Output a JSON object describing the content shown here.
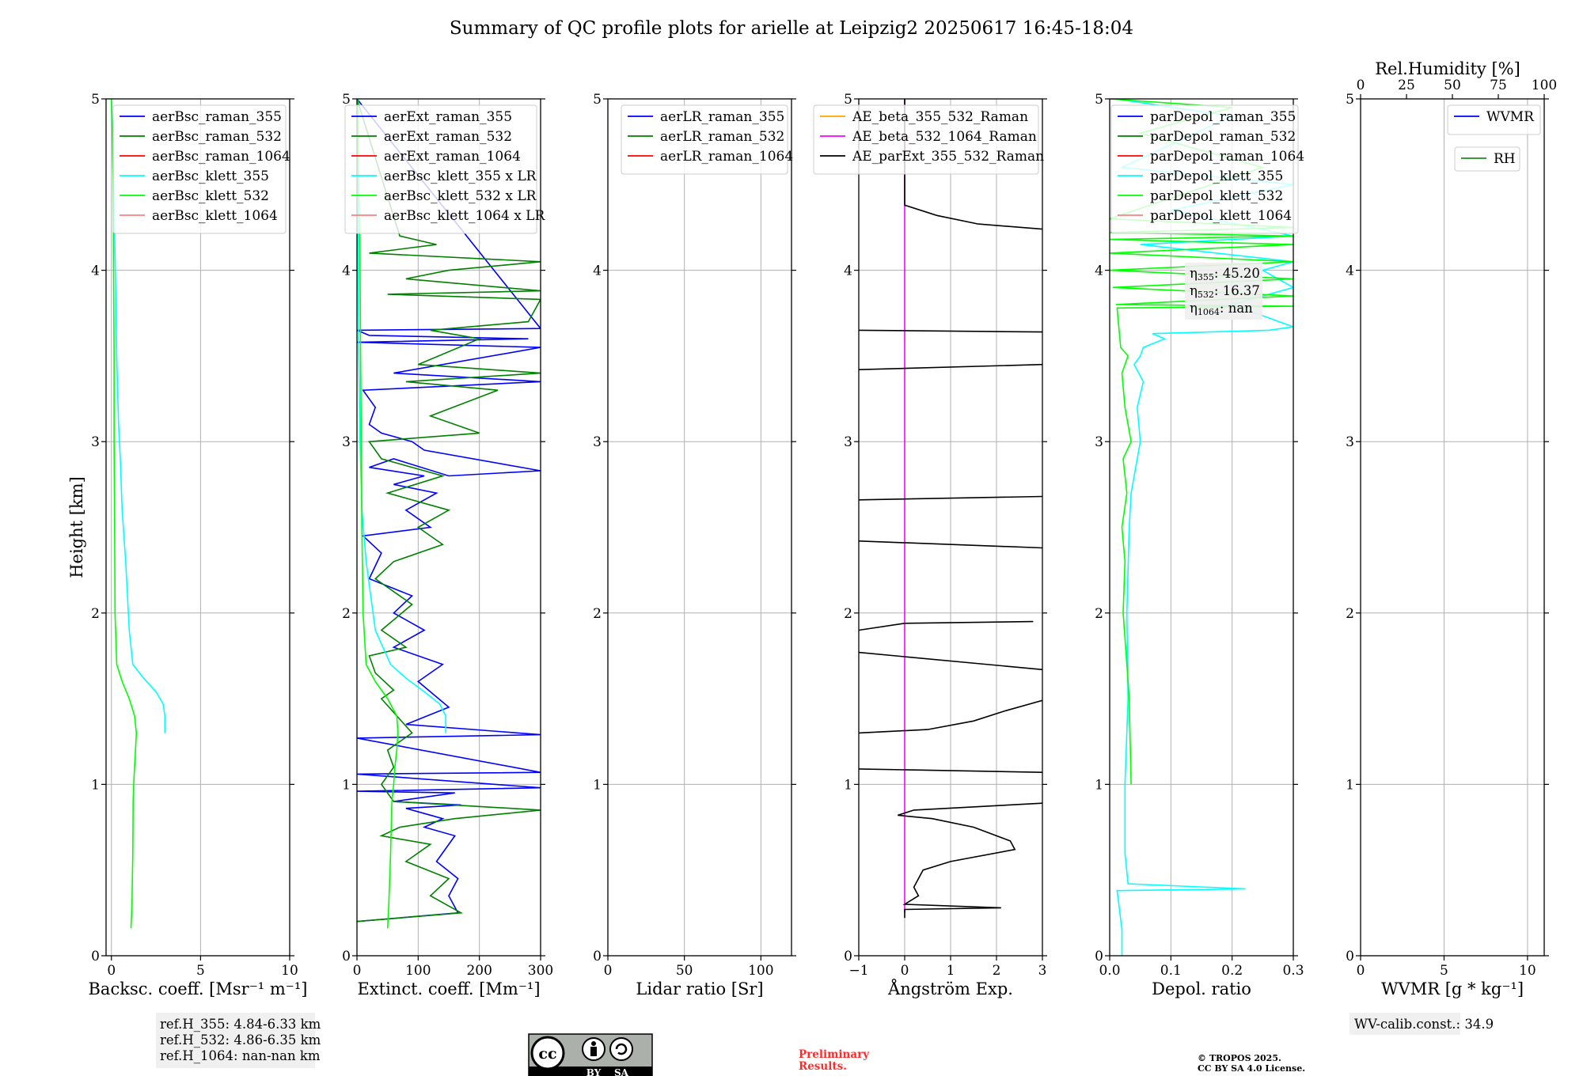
{
  "title": "Summary of QC profile plots for arielle at Leipzig2 20250617 16:45-18:04",
  "colors": {
    "raman_355": "#0000ff",
    "raman_532": "#008000",
    "raman_1064": "#ff0000",
    "klett_355": "#00ffff",
    "klett_532": "#00ff00",
    "klett_1064": "#ff8080",
    "ae_355_532": "#ffa500",
    "ae_532_1064": "#ff00ff",
    "ae_parext": "#000000",
    "rh": "#228b22"
  },
  "y_axis": {
    "label": "Height [km]",
    "lim": [
      0,
      5
    ],
    "ticks": [
      "0",
      "1",
      "2",
      "3",
      "4",
      "5"
    ]
  },
  "chart_data": [
    {
      "type": "line",
      "id": "bsc",
      "xlabel": "Backsc. coeff. [Msr⁻¹ m⁻¹]",
      "xlim": [
        -0.3,
        10
      ],
      "xticks": [
        0,
        5,
        10
      ],
      "xticklabels": [
        "0",
        "5",
        "10"
      ],
      "legend": [
        "aerBsc_raman_355",
        "aerBsc_raman_532",
        "aerBsc_raman_1064",
        "aerBsc_klett_355",
        "aerBsc_klett_532",
        "aerBsc_klett_1064"
      ],
      "legend_colors": [
        "raman_355",
        "raman_532",
        "raman_1064",
        "klett_355",
        "klett_532",
        "klett_1064"
      ],
      "legend_loc": "upper-right",
      "series": [
        {
          "color": "klett_355",
          "x": [
            3.0,
            3.0,
            2.9,
            2.5,
            1.8,
            1.2,
            1.0,
            0.8,
            0.6,
            0.5,
            0.45,
            0.4,
            0.35,
            0.3,
            0.25,
            0.22,
            0.18,
            0.15,
            0.1,
            0.05,
            0.0
          ],
          "y": [
            1.3,
            1.4,
            1.47,
            1.54,
            1.62,
            1.7,
            1.9,
            2.3,
            2.6,
            2.9,
            3.0,
            3.1,
            3.3,
            3.5,
            3.8,
            4.0,
            4.2,
            4.4,
            4.6,
            4.8,
            5.0
          ]
        },
        {
          "color": "klett_532",
          "x": [
            1.1,
            1.15,
            1.2,
            1.22,
            1.25,
            1.3,
            1.35,
            1.4,
            1.3,
            1.0,
            0.6,
            0.3,
            0.2,
            0.18,
            0.15,
            0.15,
            0.12,
            0.1,
            0.05,
            0.0
          ],
          "y": [
            0.16,
            0.3,
            0.6,
            0.9,
            1.0,
            1.1,
            1.2,
            1.3,
            1.4,
            1.5,
            1.6,
            1.7,
            2.0,
            2.5,
            3.0,
            3.5,
            4.0,
            4.5,
            4.8,
            5.0
          ]
        }
      ]
    },
    {
      "type": "line",
      "id": "ext",
      "xlabel": "Extinct. coeff. [Mm⁻¹]",
      "xlim": [
        0,
        300
      ],
      "xticks": [
        0,
        100,
        200,
        300
      ],
      "xticklabels": [
        "0",
        "100",
        "200",
        "300"
      ],
      "legend": [
        "aerExt_raman_355",
        "aerExt_raman_532",
        "aerExt_raman_1064",
        "aerBsc_klett_355 x LR",
        "aerBsc_klett_532 x LR",
        "aerBsc_klett_1064 x LR"
      ],
      "legend_colors": [
        "raman_355",
        "raman_532",
        "raman_1064",
        "klett_355",
        "klett_532",
        "klett_1064"
      ],
      "legend_loc": "upper-right",
      "series": [
        {
          "color": "raman_355",
          "x": [
            0,
            165,
            150,
            165,
            130,
            160,
            110,
            140,
            80,
            170,
            60,
            160,
            0,
            300,
            0,
            300,
            0,
            300,
            80,
            150,
            100,
            140,
            60,
            110,
            60,
            90,
            20,
            40,
            10,
            120,
            80,
            130,
            60,
            110,
            20,
            60,
            150,
            300,
            110,
            90,
            40,
            20,
            30,
            10,
            300,
            60,
            300,
            0,
            280,
            20,
            0,
            300,
            0
          ],
          "y": [
            0.2,
            0.25,
            0.35,
            0.45,
            0.55,
            0.7,
            0.75,
            0.8,
            0.86,
            0.88,
            0.9,
            0.95,
            0.96,
            0.98,
            1.06,
            1.07,
            1.27,
            1.29,
            1.35,
            1.45,
            1.6,
            1.7,
            1.8,
            1.9,
            2.0,
            2.1,
            2.2,
            2.35,
            2.45,
            2.5,
            2.6,
            2.7,
            2.75,
            2.8,
            2.85,
            2.9,
            2.8,
            2.83,
            2.95,
            3.0,
            3.05,
            3.1,
            3.2,
            3.3,
            3.35,
            3.4,
            3.55,
            3.58,
            3.6,
            3.62,
            3.65,
            3.66,
            5.0
          ]
        },
        {
          "color": "raman_532",
          "x": [
            0,
            170,
            120,
            150,
            80,
            120,
            40,
            70,
            160,
            300,
            60,
            40,
            60,
            50,
            90,
            40,
            60,
            30,
            20,
            80,
            40,
            90,
            30,
            60,
            140,
            100,
            150,
            50,
            140,
            40,
            20,
            200,
            120,
            230,
            80,
            300,
            100,
            200,
            120,
            280,
            300,
            50,
            300,
            80,
            150,
            300,
            20,
            130,
            70,
            0
          ],
          "y": [
            0.2,
            0.25,
            0.35,
            0.45,
            0.55,
            0.65,
            0.7,
            0.75,
            0.8,
            0.85,
            0.9,
            1.0,
            1.1,
            1.2,
            1.3,
            1.5,
            1.55,
            1.65,
            1.75,
            1.8,
            1.9,
            2.05,
            2.2,
            2.3,
            2.4,
            2.5,
            2.6,
            2.7,
            2.8,
            2.9,
            3.0,
            3.05,
            3.15,
            3.3,
            3.35,
            3.4,
            3.45,
            3.6,
            3.65,
            3.7,
            3.83,
            3.86,
            3.88,
            3.95,
            4.0,
            4.05,
            4.1,
            4.15,
            4.2,
            5.0
          ]
        },
        {
          "color": "klett_355",
          "x": [
            145,
            145,
            135,
            110,
            80,
            55,
            30,
            15,
            8,
            5,
            3,
            2,
            1
          ],
          "y": [
            1.3,
            1.4,
            1.47,
            1.54,
            1.62,
            1.7,
            1.9,
            2.3,
            2.6,
            3.0,
            3.5,
            4.0,
            5.0
          ]
        },
        {
          "color": "klett_532",
          "x": [
            50,
            52,
            55,
            57,
            60,
            62,
            65,
            67,
            65,
            50,
            30,
            15,
            10,
            8,
            7,
            6,
            5,
            3,
            1
          ],
          "y": [
            0.16,
            0.3,
            0.6,
            0.9,
            1.0,
            1.1,
            1.2,
            1.3,
            1.4,
            1.5,
            1.6,
            1.7,
            2.0,
            2.5,
            3.0,
            3.5,
            4.0,
            4.5,
            5.0
          ]
        }
      ]
    },
    {
      "type": "line",
      "id": "lr",
      "xlabel": "Lidar ratio [Sr]",
      "xlim": [
        0,
        120
      ],
      "xticks": [
        0,
        50,
        100
      ],
      "xticklabels": [
        "0",
        "50",
        "100"
      ],
      "legend": [
        "aerLR_raman_355",
        "aerLR_raman_532",
        "aerLR_raman_1064"
      ],
      "legend_colors": [
        "raman_355",
        "raman_532",
        "raman_1064"
      ],
      "legend_loc": "upper-right",
      "series": []
    },
    {
      "type": "line",
      "id": "ae",
      "xlabel": "Ångström Exp.",
      "xlim": [
        -1,
        3
      ],
      "xticks": [
        -1,
        0,
        1,
        2,
        3
      ],
      "xticklabels": [
        "−1",
        "0",
        "1",
        "2",
        "3"
      ],
      "legend": [
        "AE_beta_355_532_Raman",
        "AE_beta_532_1064_Raman",
        "AE_parExt_355_532_Raman"
      ],
      "legend_colors": [
        "ae_355_532",
        "ae_532_1064",
        "ae_parext"
      ],
      "legend_loc": "upper-right",
      "series": [
        {
          "color": "ae_532_1064",
          "x": [
            0,
            0
          ],
          "y": [
            0.25,
            5.0
          ]
        },
        {
          "color": "ae_parext",
          "x": [
            0,
            0,
            2.1,
            0,
            0.3,
            0.2,
            0.4,
            1.0,
            2.4,
            2.3,
            1.5,
            0.6,
            -0.15,
            0.2,
            3.0
          ],
          "y": [
            0.22,
            0.27,
            0.28,
            0.3,
            0.35,
            0.4,
            0.5,
            0.55,
            0.62,
            0.67,
            0.75,
            0.8,
            0.82,
            0.85,
            0.89
          ]
        },
        {
          "color": "ae_parext",
          "x": [
            -1,
            3
          ],
          "y": [
            1.09,
            1.07
          ]
        },
        {
          "color": "ae_parext",
          "x": [
            -1,
            0.5,
            1.5,
            2.2,
            3.0
          ],
          "y": [
            1.3,
            1.32,
            1.37,
            1.43,
            1.49
          ]
        },
        {
          "color": "ae_parext",
          "x": [
            -1,
            3
          ],
          "y": [
            1.77,
            1.67
          ]
        },
        {
          "color": "ae_parext",
          "x": [
            -1,
            0,
            2.8
          ],
          "y": [
            1.9,
            1.94,
            1.95
          ]
        },
        {
          "color": "ae_parext",
          "x": [
            -1,
            3
          ],
          "y": [
            2.42,
            2.38
          ]
        },
        {
          "color": "ae_parext",
          "x": [
            -1,
            3
          ],
          "y": [
            2.66,
            2.68
          ]
        },
        {
          "color": "ae_parext",
          "x": [
            -1,
            3
          ],
          "y": [
            3.42,
            3.45
          ]
        },
        {
          "color": "ae_parext",
          "x": [
            -1,
            3
          ],
          "y": [
            3.65,
            3.64
          ]
        },
        {
          "color": "ae_parext",
          "x": [
            0,
            0,
            0.7,
            1.6,
            3.0
          ],
          "y": [
            5.0,
            4.38,
            4.32,
            4.27,
            4.24
          ]
        }
      ]
    },
    {
      "type": "line",
      "id": "depol",
      "xlabel": "Depol. ratio",
      "xlim": [
        0,
        0.3
      ],
      "xticks": [
        0,
        0.1,
        0.2,
        0.3
      ],
      "xticklabels": [
        "0.0",
        "0.1",
        "0.2",
        "0.3"
      ],
      "legend": [
        "parDepol_raman_355",
        "parDepol_raman_532",
        "parDepol_raman_1064",
        "parDepol_klett_355",
        "parDepol_klett_532",
        "parDepol_klett_1064"
      ],
      "legend_colors": [
        "raman_355",
        "raman_532",
        "raman_1064",
        "klett_355",
        "klett_532",
        "klett_1064"
      ],
      "legend_loc": "upper-left",
      "series": [
        {
          "color": "klett_355",
          "x": [
            0.02,
            0.02,
            0.015,
            0.012,
            0.222,
            0.03,
            0.025,
            0.025,
            0.03,
            0.028,
            0.032,
            0.035,
            0.05,
            0.045,
            0.055,
            0.04,
            0.05,
            0.055,
            0.09,
            0.07,
            0.26,
            0.3,
            0.2,
            0.3,
            0.25,
            0.3,
            0.05,
            0.3,
            0.1,
            0.3,
            0.02,
            0.2,
            0.01
          ],
          "y": [
            0.0,
            0.15,
            0.3,
            0.38,
            0.39,
            0.42,
            0.6,
            1.0,
            1.5,
            2.0,
            2.5,
            2.7,
            3.0,
            3.2,
            3.35,
            3.45,
            3.5,
            3.55,
            3.6,
            3.63,
            3.65,
            3.67,
            3.8,
            3.9,
            4.0,
            4.05,
            4.15,
            4.2,
            4.35,
            4.5,
            4.6,
            4.9,
            5.0
          ]
        },
        {
          "color": "klett_532",
          "x": [
            0.035,
            0.032,
            0.028,
            0.022,
            0.025,
            0.02,
            0.028,
            0.022,
            0.035,
            0.025,
            0.02,
            0.03,
            0.018,
            0.012,
            0.3,
            0.01,
            0.3,
            0.005,
            0.3,
            0.0,
            0.3,
            0.0,
            0.3,
            0.0,
            0.3,
            0.0,
            0.3,
            0.0,
            0.25,
            0.05,
            0.2,
            0.0
          ],
          "y": [
            1.0,
            1.5,
            1.7,
            2.0,
            2.3,
            2.5,
            2.7,
            2.9,
            3.0,
            3.2,
            3.4,
            3.5,
            3.55,
            3.78,
            3.79,
            3.8,
            3.85,
            3.9,
            3.95,
            4.0,
            4.05,
            4.1,
            4.15,
            4.18,
            4.2,
            4.22,
            4.25,
            4.3,
            4.6,
            4.8,
            4.95,
            5.0
          ]
        }
      ]
    },
    {
      "type": "line",
      "id": "wv",
      "xlabel": "WVMR [g * kg⁻¹]",
      "xlim": [
        0,
        11
      ],
      "xticks": [
        0,
        5,
        10
      ],
      "xticklabels": [
        "0",
        "5",
        "10"
      ],
      "top_xlabel": "Rel.Humidity [%]",
      "top_xlim": [
        0,
        100
      ],
      "top_xticks": [
        0,
        25,
        50,
        75,
        100
      ],
      "top_xticklabels": [
        "0",
        "25",
        "50",
        "75",
        "100"
      ],
      "legend": [
        "WVMR"
      ],
      "legend_colors": [
        "raman_355"
      ],
      "legend_loc": "upper-right",
      "legend2": [
        "RH"
      ],
      "legend2_colors": [
        "rh"
      ],
      "series": []
    }
  ],
  "notes": {
    "eta": [
      "355: 45.20",
      "532: 16.37",
      "1064: nan"
    ],
    "refh": [
      "ref.H_355: 4.84-6.33 km",
      "ref.H_532: 4.86-6.35 km",
      "ref.H_1064: nan-nan km"
    ],
    "wvcalib": "WV-calib.const.: 34.9"
  },
  "license": {
    "by": "BY",
    "sa": "SA"
  },
  "preliminary": [
    "Preliminary",
    "Results."
  ],
  "copyright": [
    "© TROPOS 2025.",
    "CC BY SA 4.0 License."
  ]
}
